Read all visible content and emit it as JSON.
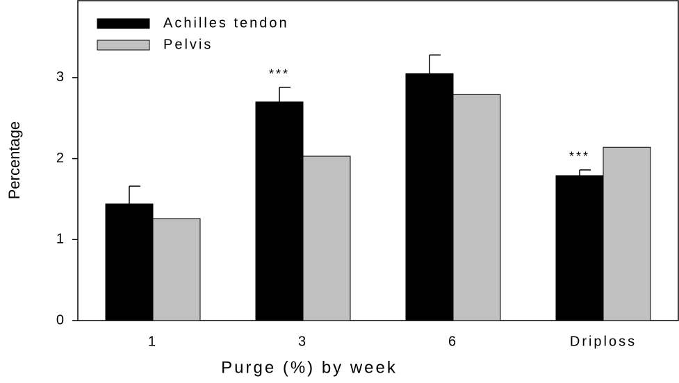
{
  "chart_data": {
    "type": "bar",
    "x_label": "Purge (%) by week",
    "y_label": "Percentage",
    "categories": [
      "1",
      "3",
      "6",
      "Driploss"
    ],
    "series": [
      {
        "name": "Achilles tendon",
        "color": "#000000",
        "values": [
          1.44,
          2.7,
          3.05,
          1.79
        ],
        "errors": [
          0.22,
          0.18,
          0.23,
          0.07
        ]
      },
      {
        "name": "Pelvis",
        "color": "#c0c0c0",
        "values": [
          1.26,
          2.03,
          2.79,
          2.14
        ]
      }
    ],
    "annotations": [
      {
        "text": "***",
        "category": 1,
        "series": 0
      },
      {
        "text": "***",
        "category": 3,
        "series": 0
      }
    ],
    "ylim": [
      0,
      3.95
    ],
    "yticks": [
      0,
      1,
      2,
      3
    ],
    "legend": "upper-left"
  }
}
